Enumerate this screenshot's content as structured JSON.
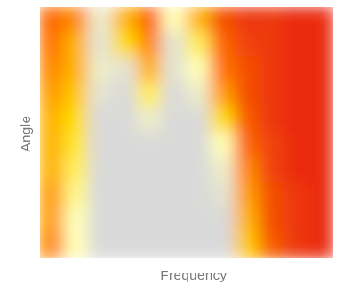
{
  "chart_data": {
    "type": "heatmap",
    "x_label": "Frequency",
    "y_label": "Angle",
    "color_stops": [
      [
        0,
        "#e61e0c"
      ],
      [
        0.35,
        "#ff7400"
      ],
      [
        0.6,
        "#ffdd00"
      ],
      [
        0.8,
        "#ffffb8"
      ],
      [
        1,
        "#d9d9d9"
      ]
    ],
    "values": [
      [
        0.3,
        0.4,
        0.9,
        0.5,
        0.3,
        0.8,
        0.5,
        0.2,
        0.1,
        0.1,
        0.05,
        0.05
      ],
      [
        0.35,
        0.5,
        0.95,
        0.6,
        0.4,
        0.95,
        0.7,
        0.3,
        0.15,
        0.1,
        0.05,
        0.05
      ],
      [
        0.4,
        0.5,
        0.9,
        0.95,
        0.5,
        0.95,
        0.8,
        0.35,
        0.2,
        0.1,
        0.05,
        0.05
      ],
      [
        0.45,
        0.55,
        0.95,
        1,
        0.7,
        1,
        0.9,
        0.45,
        0.2,
        0.1,
        0.05,
        0.05
      ],
      [
        0.5,
        0.6,
        1,
        1,
        0.9,
        1,
        1,
        0.6,
        0.25,
        0.1,
        0.05,
        0.05
      ],
      [
        0.5,
        0.65,
        1,
        1,
        1,
        1,
        1,
        0.8,
        0.3,
        0.15,
        0.05,
        0.05
      ],
      [
        0.5,
        0.7,
        1,
        1,
        1,
        1,
        1,
        0.9,
        0.4,
        0.15,
        0.05,
        0.05
      ],
      [
        0.45,
        0.75,
        1,
        1,
        1,
        1,
        1,
        0.95,
        0.45,
        0.2,
        0.1,
        0.05
      ],
      [
        0.45,
        0.8,
        1,
        1,
        1,
        1,
        1,
        1,
        0.5,
        0.2,
        0.1,
        0.05
      ],
      [
        0.4,
        0.8,
        1,
        1,
        1,
        1,
        1,
        1,
        0.55,
        0.25,
        0.1,
        0.05
      ]
    ]
  }
}
